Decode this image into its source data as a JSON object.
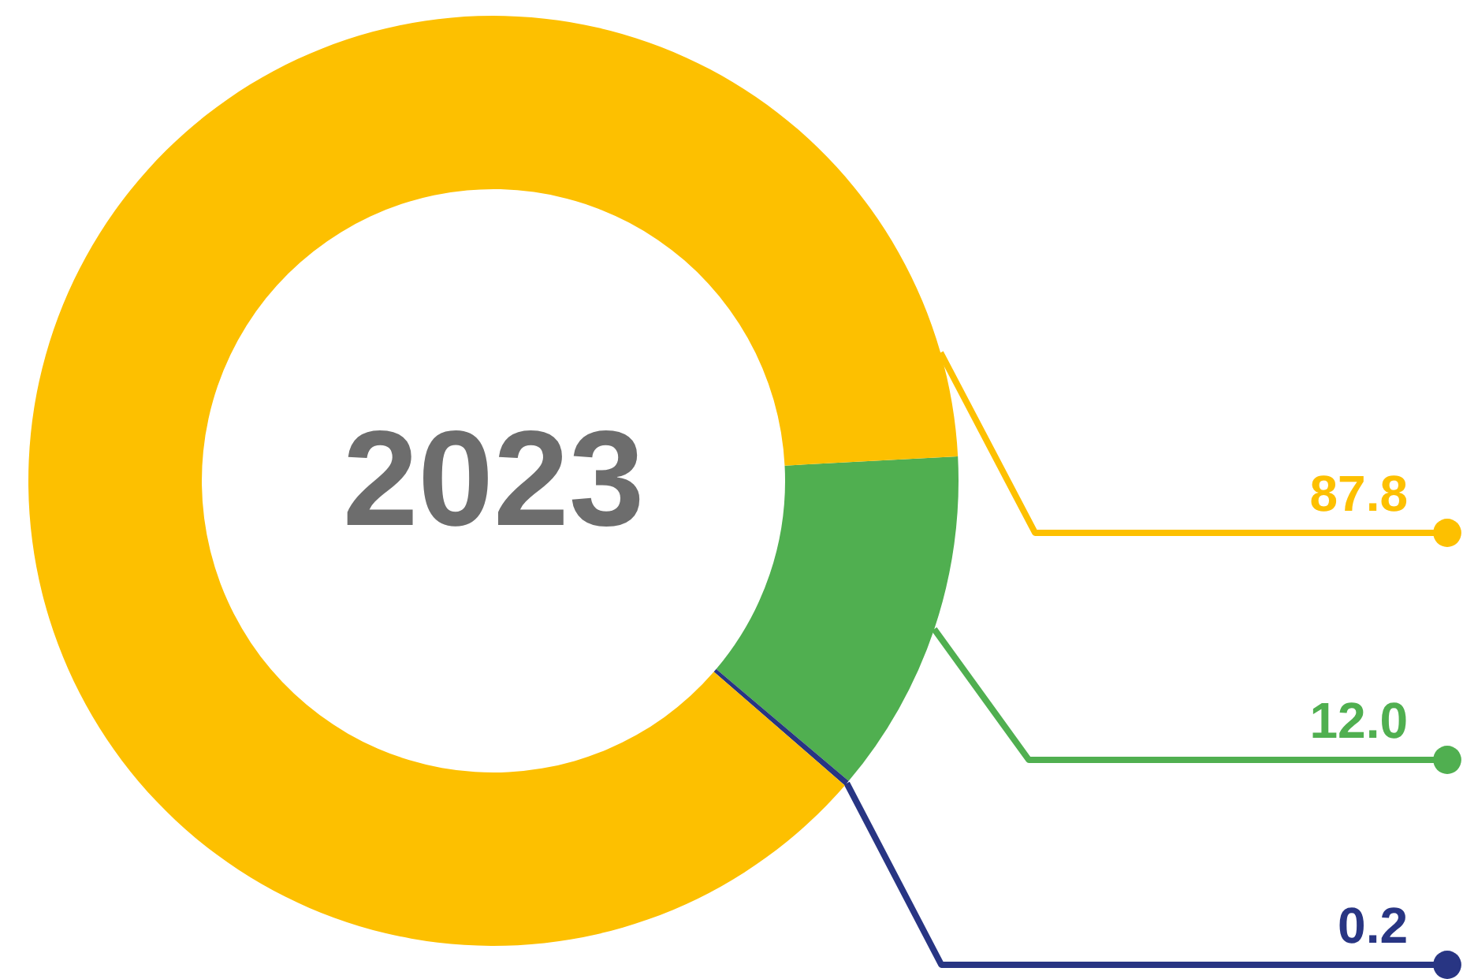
{
  "chart_data": {
    "type": "donut",
    "title": "2023",
    "categories": [
      null,
      null,
      null
    ],
    "values": [
      12.0,
      0.2,
      87.8
    ],
    "value_labels": [
      "12.0",
      "0.2",
      "87.8"
    ],
    "colors": [
      "#50af50",
      "#283583",
      "#fdc000"
    ]
  }
}
